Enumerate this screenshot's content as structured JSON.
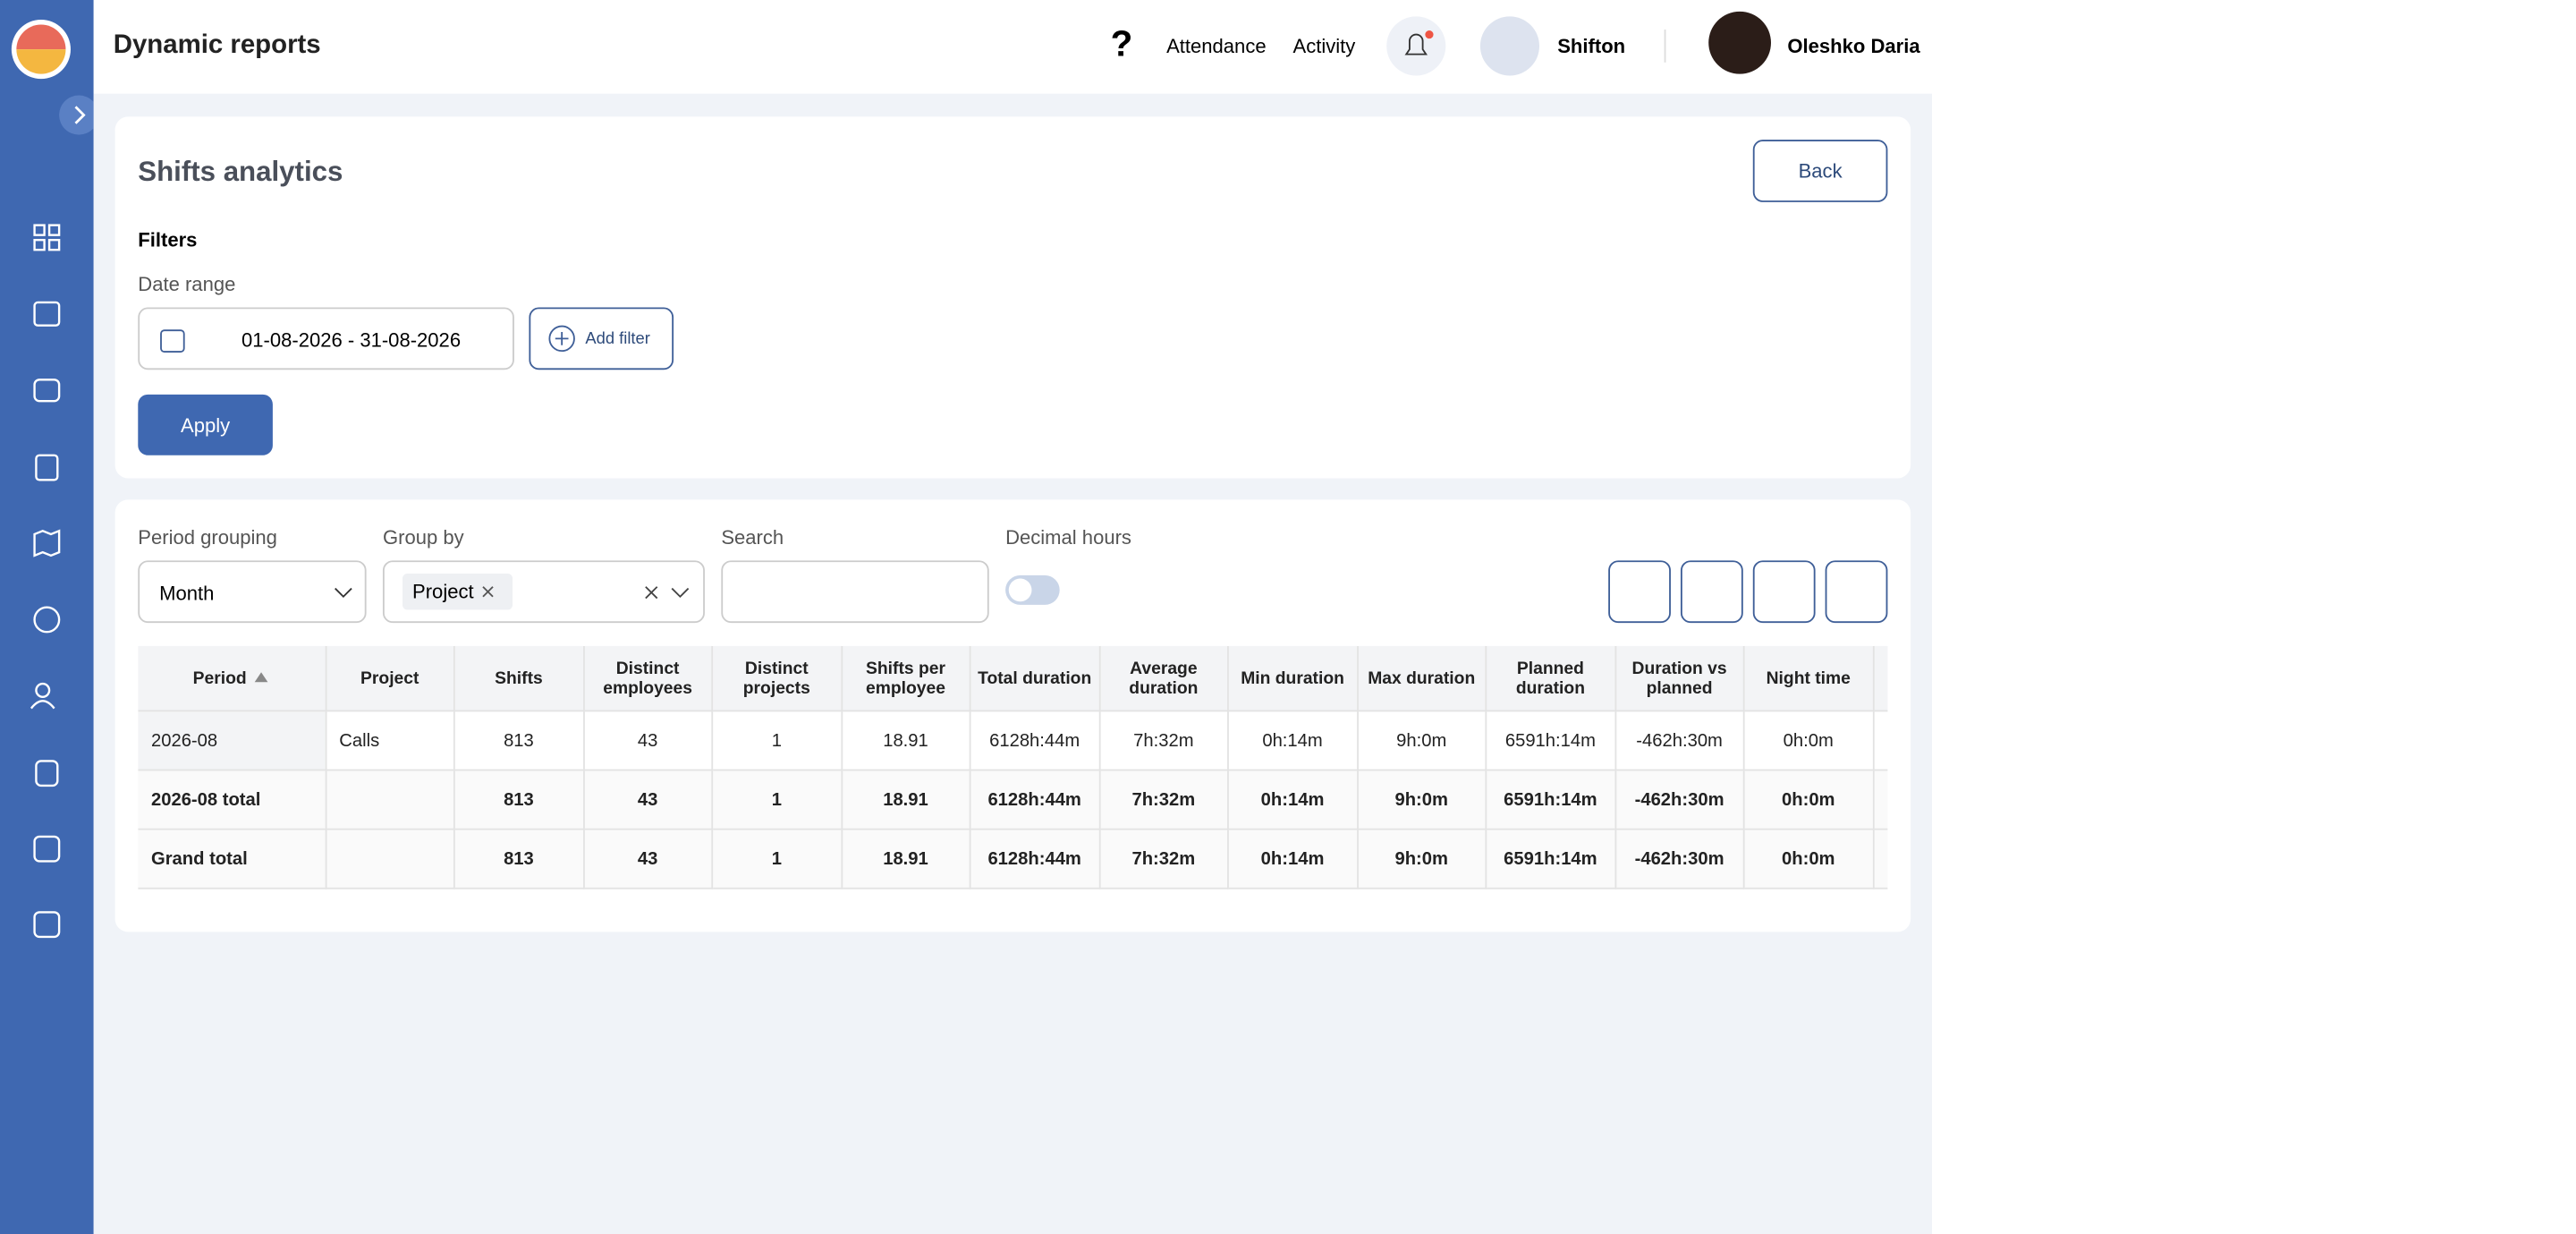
{
  "header": {
    "title": "Dynamic reports",
    "links": [
      "Attendance",
      "Activity"
    ],
    "company": "Shifton",
    "user": "Oleshko Daria"
  },
  "card": {
    "title": "Shifts analytics",
    "back": "Back",
    "filters_label": "Filters",
    "date_label": "Date range",
    "date_value": "01-08-2026 - 31-08-2026",
    "add_filter": "Add filter",
    "apply": "Apply"
  },
  "controls": {
    "period_label": "Period grouping",
    "period_value": "Month",
    "group_label": "Group by",
    "group_chip": "Project",
    "search_label": "Search",
    "decimal_label": "Decimal hours"
  },
  "table": {
    "headers": [
      "Period",
      "Project",
      "Shifts",
      "Distinct employees",
      "Distinct projects",
      "Shifts per employee",
      "Total duration",
      "Average duration",
      "Min duration",
      "Max duration",
      "Planned duration",
      "Duration vs planned",
      "Night time"
    ],
    "rows": [
      [
        "2026-08",
        "Calls",
        "813",
        "43",
        "1",
        "18.91",
        "6128h:44m",
        "7h:32m",
        "0h:14m",
        "9h:0m",
        "6591h:14m",
        "-462h:30m",
        "0h:0m"
      ],
      [
        "2026-08 total",
        null,
        "813",
        "43",
        "1",
        "18.91",
        "6128h:44m",
        "7h:32m",
        "0h:14m",
        "9h:0m",
        "6591h:14m",
        "-462h:30m",
        "0h:0m"
      ],
      [
        "Grand total",
        null,
        "813",
        "43",
        "1",
        "18.91",
        "6128h:44m",
        "7h:32m",
        "0h:14m",
        "9h:0m",
        "6591h:14m",
        "-462h:30m",
        "0h:0m"
      ]
    ]
  }
}
